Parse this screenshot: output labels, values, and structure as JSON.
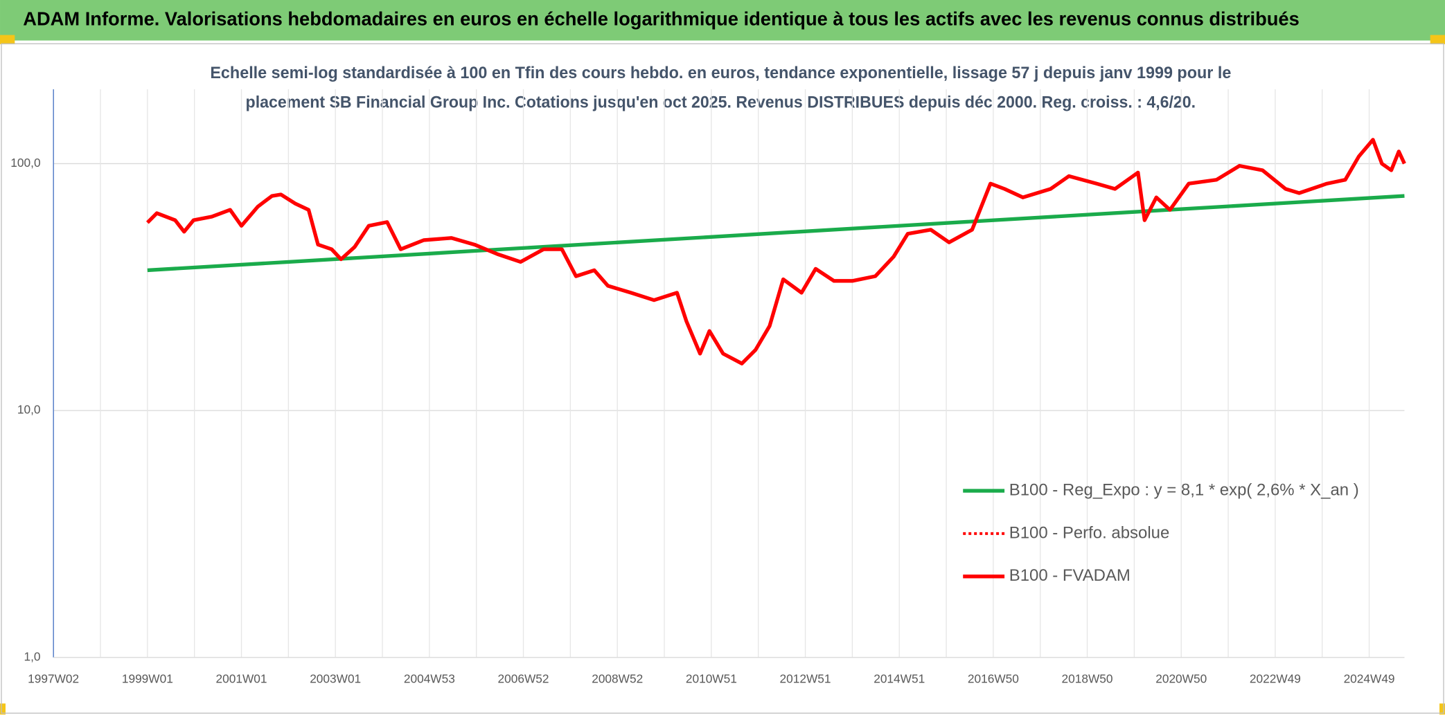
{
  "chart_data": {
    "type": "line",
    "title": "ADAM Informe. Valorisations hebdomadaires en euros en échelle logarithmique identique à tous les actifs avec les revenus connus distribués",
    "subtitle": [
      "Echelle semi-log standardisée à 100 en Tfin des cours hebdo. en euros, tendance exponentielle, lissage 57 j depuis janv 1999 pour le",
      "placement SB Financial Group Inc. Cotations jusqu'en oct 2025. Revenus DISTRIBUES depuis déc 2000. Reg. croiss. : 4,6/20."
    ],
    "log_y": true,
    "grid": true,
    "legend": "lower right",
    "xlim": [
      1997,
      2025.75
    ],
    "ylim": [
      1,
      200
    ],
    "yticks": [
      {
        "value": 1,
        "label": "1,0"
      },
      {
        "value": 10,
        "label": "10,0"
      },
      {
        "value": 100,
        "label": "100,0"
      }
    ],
    "xticks": [
      {
        "value": 1997,
        "label": "1997W02"
      },
      {
        "value": 1999,
        "label": "1999W01"
      },
      {
        "value": 2001,
        "label": "2001W01"
      },
      {
        "value": 2003,
        "label": "2003W01"
      },
      {
        "value": 2005,
        "label": "2004W53"
      },
      {
        "value": 2007,
        "label": "2006W52"
      },
      {
        "value": 2009,
        "label": "2008W52"
      },
      {
        "value": 2011,
        "label": "2010W51"
      },
      {
        "value": 2013,
        "label": "2012W51"
      },
      {
        "value": 2015,
        "label": "2014W51"
      },
      {
        "value": 2017,
        "label": "2016W50"
      },
      {
        "value": 2019,
        "label": "2018W50"
      },
      {
        "value": 2021,
        "label": "2020W50"
      },
      {
        "value": 2023,
        "label": "2022W49"
      },
      {
        "value": 2025,
        "label": "2024W49"
      }
    ],
    "xminorticks": [
      1998,
      2000,
      2002,
      2004,
      2006,
      2008,
      2010,
      2012,
      2014,
      2016,
      2018,
      2020,
      2022,
      2024
    ],
    "series": [
      {
        "name": "B100 - Reg_Expo : y = 8,1 * exp( 2,6% *  X_an )",
        "color": "#1aab4b",
        "dash": "solid",
        "x": [
          1999,
          2025.75
        ],
        "values": [
          37,
          74
        ]
      },
      {
        "name": "B100 - Perfo. absolue",
        "color": "#ff0000",
        "dash": "dotted",
        "x": [],
        "values": []
      },
      {
        "name": "B100 - FVADAM",
        "color": "#ff0000",
        "dash": "solid",
        "x": [
          1999.0,
          1999.2,
          1999.59,
          1999.78,
          1999.98,
          2000.37,
          2000.76,
          2001.0,
          2001.35,
          2001.65,
          2001.84,
          2002.14,
          2002.43,
          2002.63,
          2002.92,
          2003.12,
          2003.41,
          2003.71,
          2004.1,
          2004.39,
          2004.88,
          2005.47,
          2005.96,
          2006.45,
          2006.94,
          2007.43,
          2007.82,
          2008.12,
          2008.51,
          2008.8,
          2009.29,
          2009.78,
          2010.27,
          2010.47,
          2010.76,
          2010.96,
          2011.25,
          2011.65,
          2011.94,
          2012.24,
          2012.53,
          2012.92,
          2013.22,
          2013.61,
          2014.0,
          2014.49,
          2014.88,
          2015.18,
          2015.67,
          2016.06,
          2016.55,
          2016.94,
          2017.24,
          2017.63,
          2018.22,
          2018.61,
          2019.2,
          2019.59,
          2020.08,
          2020.22,
          2020.47,
          2020.76,
          2021.16,
          2021.75,
          2022.24,
          2022.73,
          2023.22,
          2023.51,
          2024.1,
          2024.49,
          2024.78,
          2025.08,
          2025.27,
          2025.47,
          2025.63,
          2025.75
        ],
        "values": [
          57.7,
          63,
          59,
          53,
          59,
          61,
          65,
          56,
          67,
          74,
          75,
          69,
          65,
          47,
          45,
          41,
          46,
          56,
          58,
          45,
          49,
          50,
          47,
          43,
          40,
          45,
          45,
          35,
          37,
          32,
          30,
          28,
          30,
          23,
          17,
          21,
          17,
          15.5,
          17.6,
          22,
          34,
          30,
          37.5,
          33.5,
          33.5,
          35,
          42,
          52,
          54,
          48,
          54,
          83,
          79,
          73,
          79,
          89,
          83,
          79,
          92,
          59,
          73,
          65,
          83,
          86,
          98,
          94,
          79,
          76,
          83,
          86,
          107,
          125,
          100,
          94,
          112,
          100
        ]
      }
    ]
  }
}
